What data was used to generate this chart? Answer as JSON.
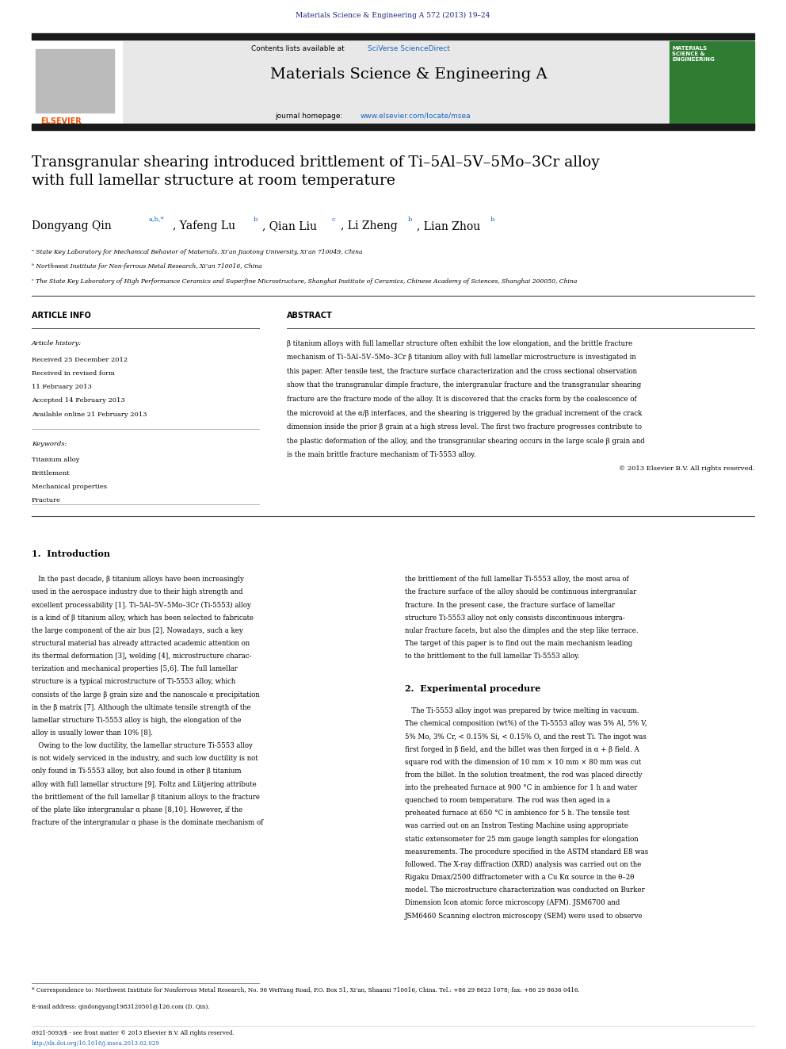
{
  "page_width": 9.92,
  "page_height": 13.23,
  "bg_color": "#ffffff",
  "journal_ref": "Materials Science & Engineering A 572 (2013) 19–24",
  "journal_ref_color": "#1a237e",
  "header_bg": "#e8e8e8",
  "header_text": "Materials Science & Engineering A",
  "contents_text": "Contents lists available at",
  "sciverse_text": "SciVerse ScienceDirect",
  "sciverse_color": "#1565C0",
  "journal_home_text": "journal homepage: ",
  "journal_url": "www.elsevier.com/locate/msea",
  "journal_url_color": "#1565C0",
  "title": "Transgranular shearing introduced brittlement of Ti–5Al–5V–5Mo–3Cr alloy\nwith full lamellar structure at room temperature",
  "affil_a": "ᵃ State Key Laboratory for Mechanical Behavior of Materials, Xi’an Jiaotong University, Xi’an 710049, China",
  "affil_b": "ᵇ Northwest Institute for Non-ferrous Metal Research, Xi’an 710016, China",
  "affil_c": "ᶜ The State Key Laboratory of High Performance Ceramics and Superfine Microstructure, Shanghai Institute of Ceramics, Chinese Academy of Sciences, Shanghai 200050, China",
  "article_info_title": "ARTICLE INFO",
  "abstract_title": "ABSTRACT",
  "article_history_label": "Article history:",
  "received": "Received 25 December 2012",
  "revised": "Received in revised form",
  "revised2": "11 February 2013",
  "accepted": "Accepted 14 February 2013",
  "available": "Available online 21 February 2013",
  "keywords_label": "Keywords:",
  "kw1": "Titanium alloy",
  "kw2": "Brittlement",
  "kw3": "Mechanical properties",
  "kw4": "Fracture",
  "copyright": "© 2013 Elsevier B.V. All rights reserved.",
  "section1_title": "1.  Introduction",
  "section2_title": "2.  Experimental procedure",
  "footnote1": "* Correspondence to: Northwest Institute for Nonferrous Metal Research, No. 96 WeiYang Road, P.O. Box 51, Xi’an, Shaanxi 710016, China. Tel.: +86 29 8623 1078; fax: +86 29 8636 0416.",
  "footnote2": "E-mail address: qindongyang1983120501@126.com (D. Qin).",
  "bottom_text1": "0921-5093/$ - see front matter © 2013 Elsevier B.V. All rights reserved.",
  "bottom_text2": "http://dx.doi.org/10.1016/j.msea.2013.02.029",
  "thick_bar_color": "#1a1a1a",
  "blue_link_color": "#1565C0"
}
